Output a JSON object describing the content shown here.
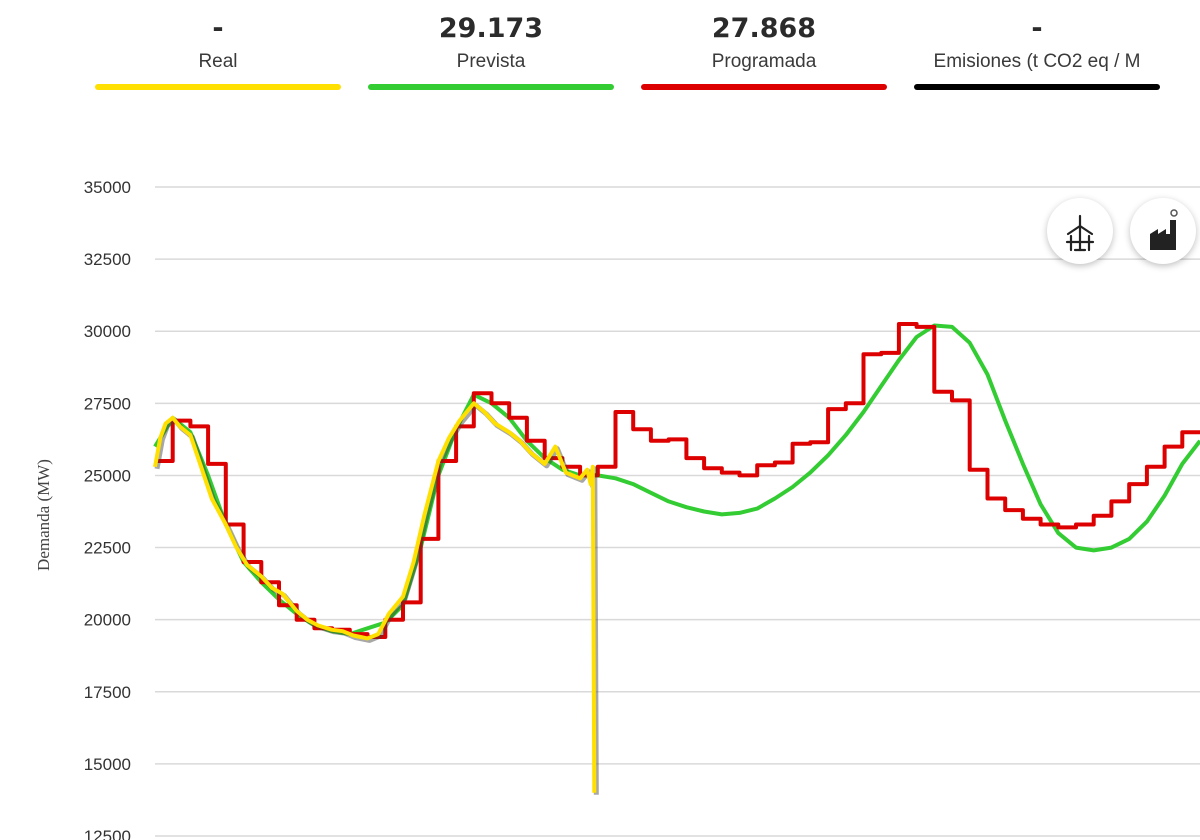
{
  "legend": [
    {
      "value": "-",
      "name": "Real",
      "color": "#ffe000"
    },
    {
      "value": "29.173",
      "name": "Prevista",
      "color": "#33cc33"
    },
    {
      "value": "27.868",
      "name": "Programada",
      "color": "#dd0000"
    },
    {
      "value": "-",
      "name": "Emisiones (t CO2 eq / M",
      "color": "#000000"
    }
  ],
  "icons": [
    "wind-turbine-icon",
    "factory-icon"
  ],
  "chart_data": {
    "type": "line",
    "title": "",
    "xlabel": "",
    "ylabel": "Demanda (MW)",
    "ylim": [
      12500,
      35000
    ],
    "yticks": [
      "35000",
      "32500",
      "30000",
      "27500",
      "25000",
      "22500",
      "20000",
      "17500",
      "15000",
      "12500"
    ],
    "grid": true,
    "x_range": [
      0,
      29.5
    ],
    "series": [
      {
        "name": "Prevista",
        "color": "#33cc33",
        "step": false,
        "x": [
          0,
          0.5,
          1,
          1.5,
          2,
          2.5,
          3,
          3.5,
          4,
          4.5,
          5,
          5.5,
          6,
          6.5,
          7,
          7.5,
          8,
          8.5,
          9,
          9.5,
          10,
          10.5,
          11,
          11.5,
          12,
          12.5,
          13,
          13.5,
          14,
          14.5,
          15,
          15.5,
          16,
          16.5,
          17,
          17.5,
          18,
          18.5,
          19,
          19.5,
          20,
          20.5,
          21,
          21.5,
          22,
          22.5,
          23,
          23.5,
          24,
          24.5,
          25,
          25.5,
          26,
          26.5,
          27,
          27.5,
          28,
          28.5,
          29,
          29.5
        ],
        "y": [
          26000,
          27000,
          26500,
          25000,
          23300,
          22000,
          21300,
          20700,
          20200,
          19800,
          19600,
          19500,
          19700,
          19900,
          20500,
          22500,
          25000,
          26600,
          27800,
          27500,
          27000,
          26200,
          25600,
          25200,
          25000,
          25000,
          24900,
          24700,
          24400,
          24100,
          23900,
          23750,
          23650,
          23700,
          23850,
          24200,
          24600,
          25100,
          25700,
          26400,
          27200,
          28100,
          29000,
          29800,
          30200,
          30150,
          29600,
          28500,
          26900,
          25400,
          24000,
          23000,
          22500,
          22400,
          22500,
          22800,
          23400,
          24300,
          25400,
          26200
        ]
      },
      {
        "name": "Programada",
        "color": "#dd0000",
        "step": true,
        "x": [
          0,
          0.5,
          1,
          1.5,
          2,
          2.5,
          3,
          3.5,
          4,
          4.5,
          5,
          5.5,
          6,
          6.5,
          7,
          7.5,
          8,
          8.5,
          9,
          9.5,
          10,
          10.5,
          11,
          11.5,
          12,
          12.5,
          13,
          13.5,
          14,
          14.5,
          15,
          15.5,
          16,
          16.5,
          17,
          17.5,
          18,
          18.5,
          19,
          19.5,
          20,
          20.5,
          21,
          21.5,
          22,
          22.5,
          23,
          23.5,
          24,
          24.5,
          25,
          25.5,
          26,
          26.5,
          27,
          27.5,
          28,
          28.5,
          29
        ],
        "y": [
          25500,
          26900,
          26700,
          25400,
          23300,
          22000,
          21300,
          20500,
          20000,
          19700,
          19650,
          19500,
          19400,
          20000,
          20600,
          22800,
          25500,
          26700,
          27850,
          27500,
          27000,
          26200,
          25600,
          25300,
          25000,
          25300,
          27200,
          26600,
          26200,
          26250,
          25600,
          25250,
          25100,
          25000,
          25350,
          25450,
          26100,
          26150,
          27300,
          27500,
          29200,
          29250,
          30250,
          30150,
          27900,
          27600,
          25200,
          24200,
          23800,
          23500,
          23300,
          23200,
          23300,
          23600,
          24100,
          24700,
          25300,
          26000,
          26500
        ]
      },
      {
        "name": "Real",
        "color": "#ffe000",
        "step": false,
        "x": [
          0,
          0.15,
          0.3,
          0.5,
          0.7,
          1,
          1.3,
          1.6,
          2,
          2.3,
          2.6,
          3,
          3.3,
          3.6,
          4,
          4.3,
          4.6,
          5,
          5.3,
          5.6,
          6,
          6.3,
          6.6,
          7,
          7.3,
          7.6,
          8,
          8.3,
          8.6,
          9,
          9.3,
          9.6,
          10,
          10.3,
          10.6,
          11,
          11.3,
          11.6,
          12,
          12.2,
          12.3,
          12.36,
          12.4
        ],
        "y": [
          25300,
          26300,
          26800,
          27000,
          26700,
          26400,
          25300,
          24200,
          23300,
          22500,
          21900,
          21500,
          21100,
          20900,
          20300,
          20000,
          19800,
          19650,
          19600,
          19450,
          19350,
          19500,
          20200,
          20800,
          22000,
          23600,
          25500,
          26300,
          26900,
          27500,
          27200,
          26800,
          26500,
          26200,
          25800,
          25400,
          26000,
          25100,
          24900,
          25200,
          24700,
          25300,
          14000
        ]
      }
    ]
  }
}
